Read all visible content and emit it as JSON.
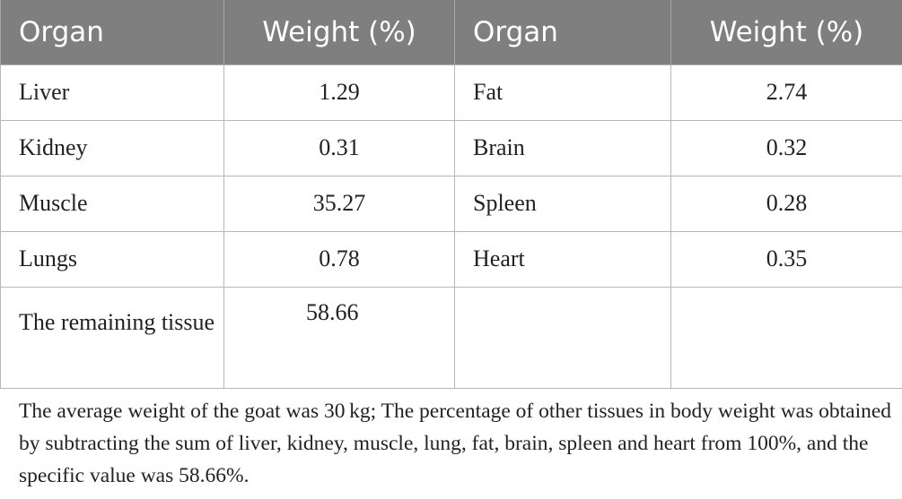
{
  "table": {
    "headers": [
      "Organ",
      "Weight (%)",
      "Organ",
      "Weight (%)"
    ],
    "rows": [
      [
        "Liver",
        "1.29",
        "Fat",
        "2.74"
      ],
      [
        "Kidney",
        "0.31",
        "Brain",
        "0.32"
      ],
      [
        "Muscle",
        "35.27",
        "Spleen",
        "0.28"
      ],
      [
        "Lungs",
        "0.78",
        "Heart",
        "0.35"
      ],
      [
        "The remaining tissue",
        "58.66",
        "",
        ""
      ]
    ],
    "colors": {
      "header_bg": "#7f7f7f",
      "header_text": "#ffffff",
      "border": "#b7b7b7"
    }
  },
  "footnote": "The average weight of the goat was 30 kg; The percentage of other tissues in body weight was obtained by subtracting the sum of liver, kidney, muscle, lung, fat, brain, spleen and heart from 100%, and the specific value was 58.66%."
}
